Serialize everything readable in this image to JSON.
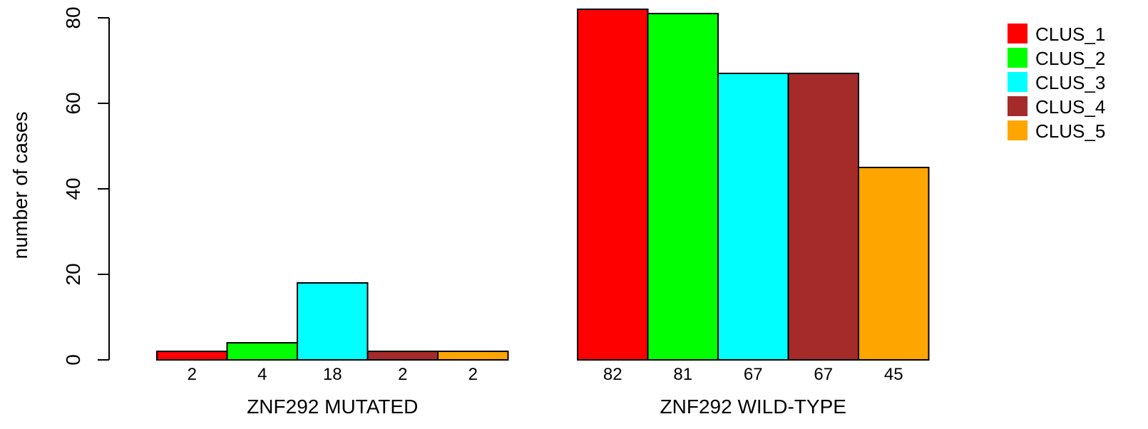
{
  "chart_data": {
    "type": "bar",
    "groups": [
      "ZNF292 MUTATED",
      "ZNF292 WILD-TYPE"
    ],
    "series": [
      {
        "name": "CLUS_1",
        "color": "#FF0000",
        "values": [
          2,
          82
        ]
      },
      {
        "name": "CLUS_2",
        "color": "#00FF00",
        "values": [
          4,
          81
        ]
      },
      {
        "name": "CLUS_3",
        "color": "#00FFFF",
        "values": [
          18,
          67
        ]
      },
      {
        "name": "CLUS_4",
        "color": "#A52A2A",
        "values": [
          2,
          67
        ]
      },
      {
        "name": "CLUS_5",
        "color": "#FFA500",
        "values": [
          2,
          45
        ]
      }
    ],
    "ylabel": "number of cases",
    "ylim": [
      0,
      80
    ],
    "yticks": [
      0,
      20,
      40,
      60,
      80
    ],
    "grid": false,
    "legend_position": "top-right",
    "value_labels": "below bars"
  }
}
